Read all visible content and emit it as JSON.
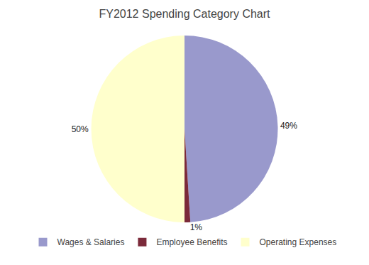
{
  "chart_data": {
    "type": "pie",
    "title": "FY2012 Spending Category Chart",
    "categories": [
      "Wages & Salaries",
      "Employee Benefits",
      "Operating Expenses"
    ],
    "values": [
      49,
      1,
      50
    ],
    "value_labels": [
      "49%",
      "1%",
      "50%"
    ],
    "colors": [
      "#9999cc",
      "#7b2a3a",
      "#ffffcc"
    ],
    "data_labels": true,
    "legend": "bottom"
  }
}
